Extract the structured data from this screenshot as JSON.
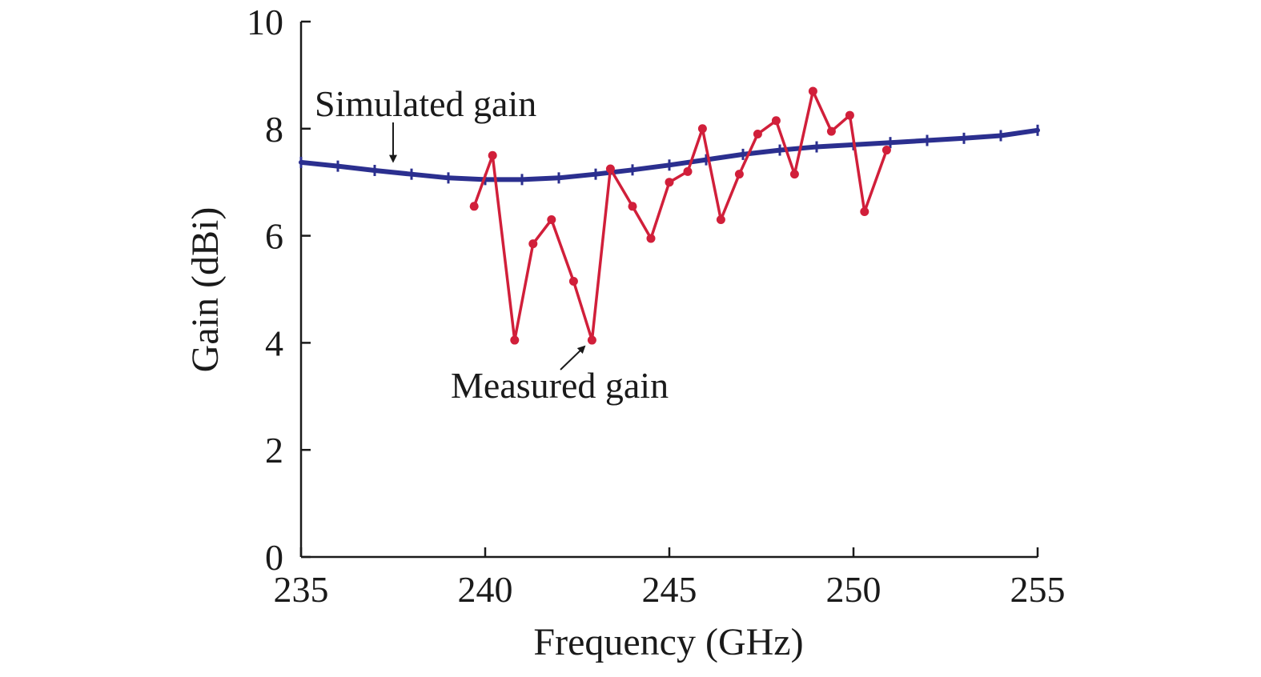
{
  "chart_data": {
    "type": "line",
    "title": "",
    "xlabel": "Frequency (GHz)",
    "ylabel": "Gain (dBi)",
    "xlim": [
      235,
      255
    ],
    "ylim": [
      0,
      10
    ],
    "xticks": [
      235,
      240,
      245,
      250,
      255
    ],
    "yticks": [
      0,
      2,
      4,
      6,
      8,
      10
    ],
    "grid": false,
    "legend": "none",
    "series": [
      {
        "color": "#2b2f8f",
        "marker": "tick",
        "x": [
          235,
          236,
          237,
          238,
          239,
          240,
          241,
          242,
          243,
          244,
          245,
          246,
          247,
          248,
          249,
          250,
          251,
          252,
          253,
          254,
          255
        ],
        "y": [
          7.37,
          7.3,
          7.22,
          7.15,
          7.08,
          7.05,
          7.05,
          7.08,
          7.15,
          7.23,
          7.32,
          7.42,
          7.52,
          7.6,
          7.66,
          7.7,
          7.74,
          7.78,
          7.82,
          7.87,
          7.97
        ]
      },
      {
        "color": "#d11f3a",
        "marker": "circle",
        "x": [
          239.7,
          240.2,
          240.8,
          241.3,
          241.8,
          242.4,
          242.9,
          243.4,
          244.0,
          244.5,
          245.0,
          245.5,
          245.9,
          246.4,
          246.9,
          247.4,
          247.9,
          248.4,
          248.9,
          249.4,
          249.9,
          250.3,
          250.9
        ],
        "y": [
          6.55,
          7.5,
          4.05,
          5.85,
          6.3,
          5.15,
          4.05,
          7.25,
          6.55,
          5.95,
          7.0,
          7.2,
          8.0,
          6.3,
          7.15,
          7.9,
          8.15,
          7.15,
          8.7,
          7.95,
          8.25,
          6.45,
          7.6
        ]
      }
    ],
    "annotations": [
      {
        "text": "Simulated gain",
        "x": 237.5,
        "y": 7.27
      },
      {
        "text": "Measured gain",
        "x": 243.0,
        "y": 4.05
      }
    ]
  }
}
